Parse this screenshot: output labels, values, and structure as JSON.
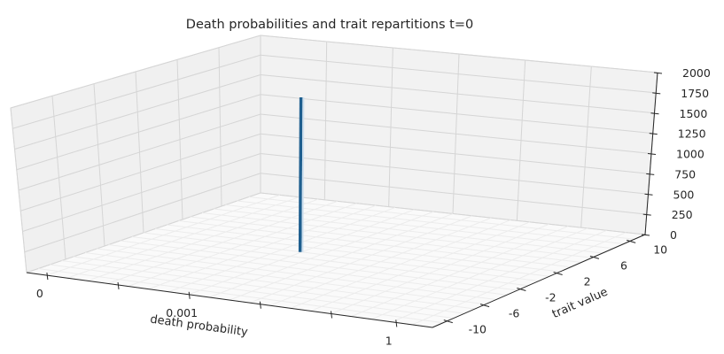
{
  "chart_data": {
    "type": "bar3d",
    "title": "Death probabilities and trait repartitions t=0",
    "xlabel": "death probability",
    "ylabel": "trait value",
    "zlabel": "",
    "x_ticks": [
      "0",
      "0.001",
      "1"
    ],
    "y_ticks": [
      "-10",
      "-6",
      "-2",
      "2",
      "6",
      "10"
    ],
    "z_ticks": [
      "0",
      "250",
      "500",
      "750",
      "1000",
      "1250",
      "1500",
      "1750",
      "2000"
    ],
    "zlim": [
      0,
      2000
    ],
    "grid": true,
    "bars": [
      {
        "death_probability": "0.001",
        "trait_value": 0,
        "count": 1950
      }
    ],
    "bar_color": "#1f5f8f"
  }
}
